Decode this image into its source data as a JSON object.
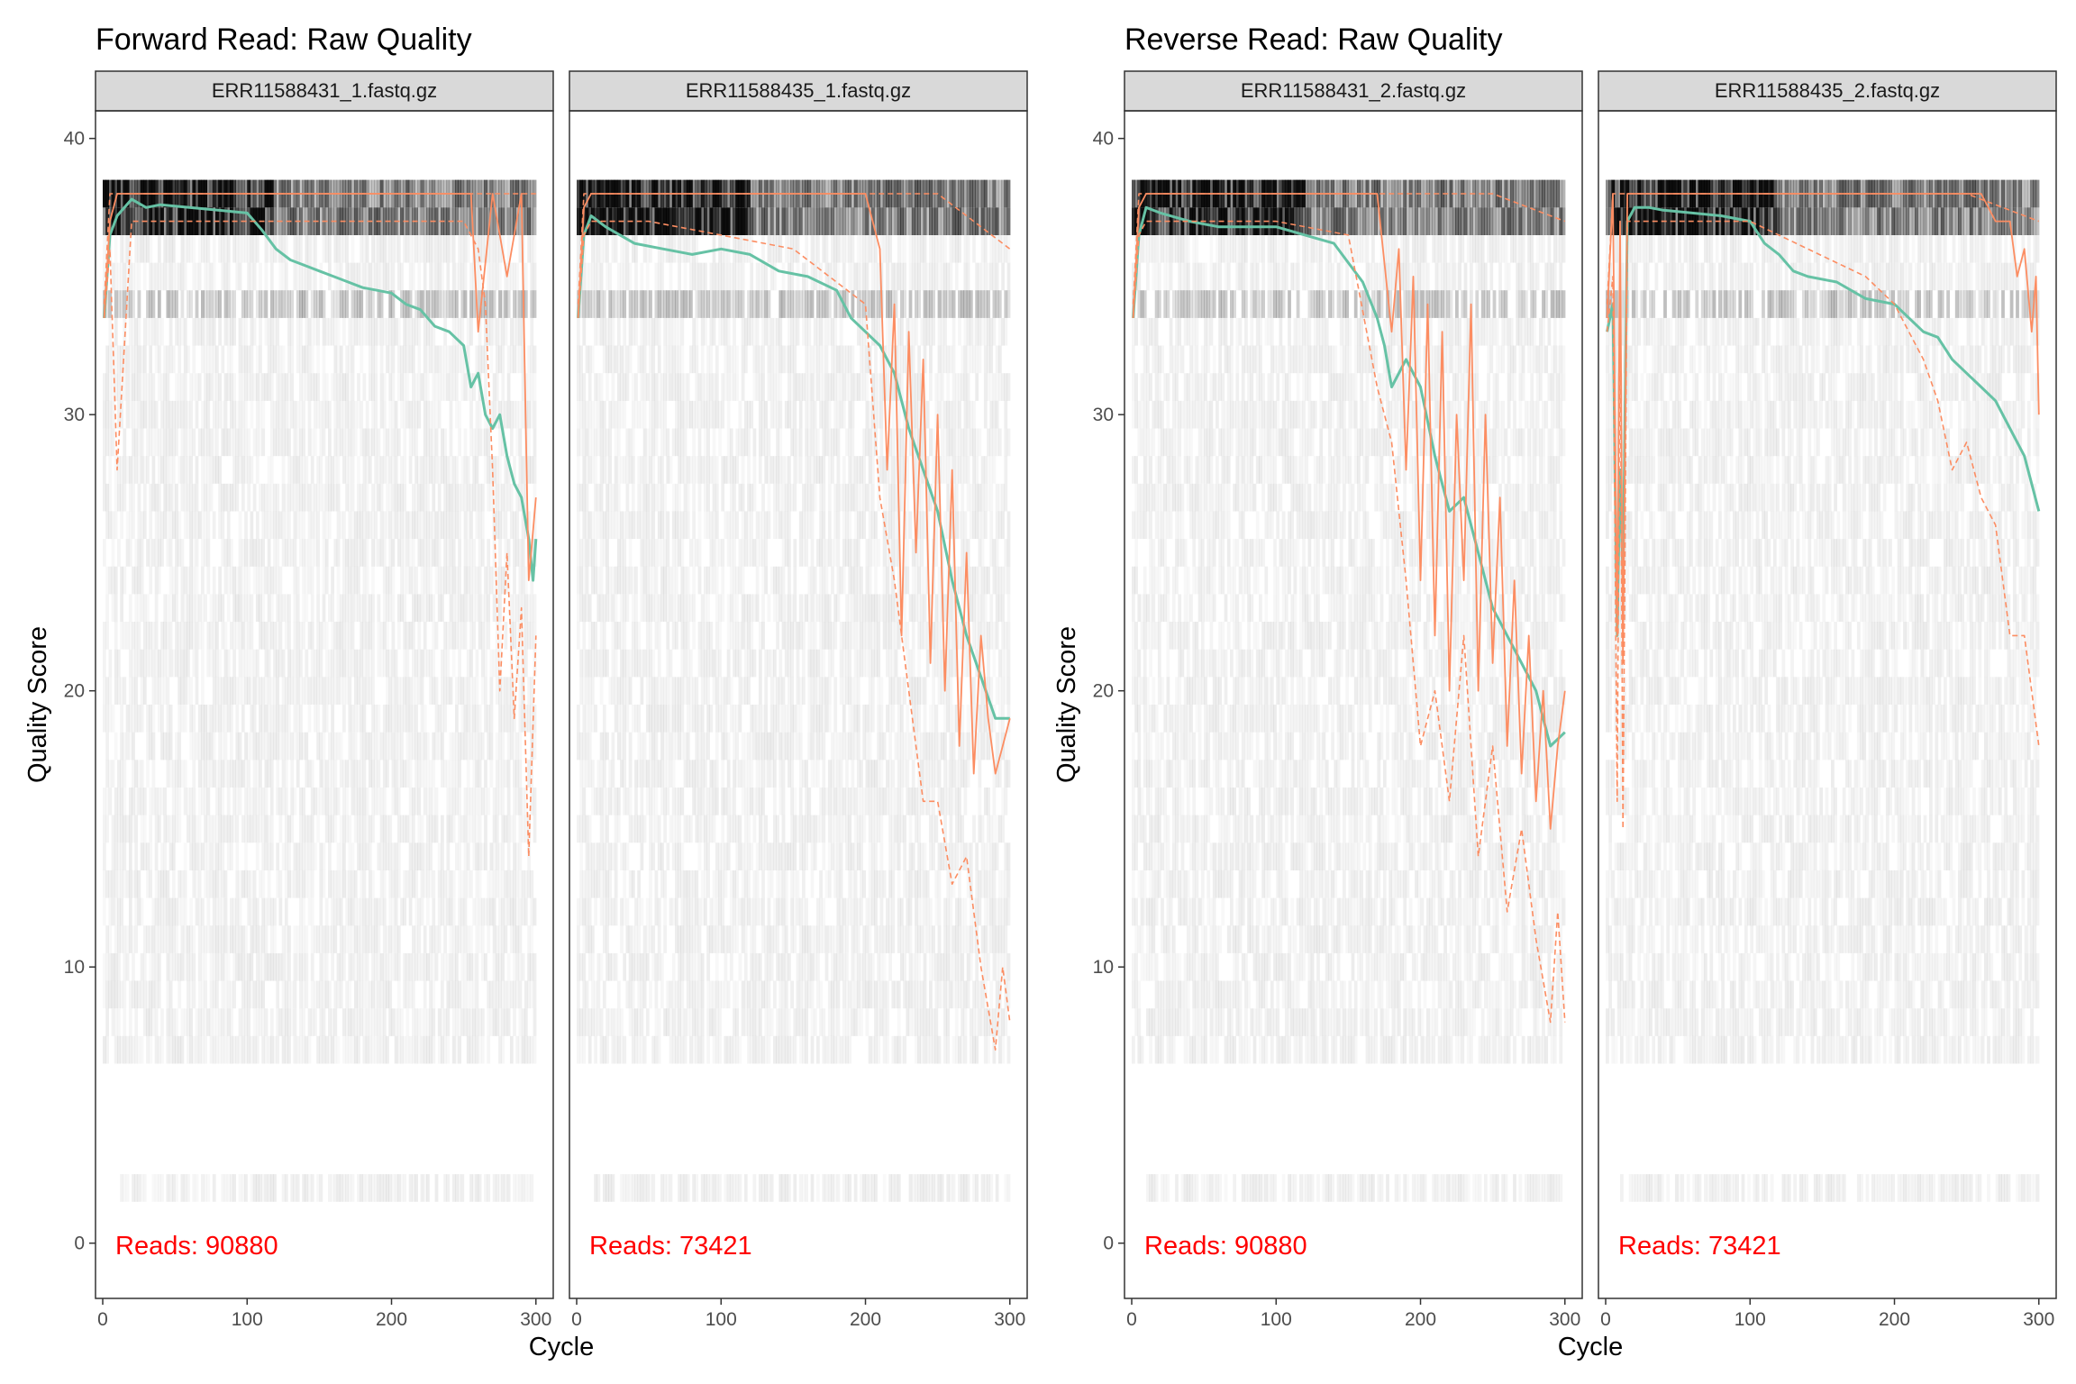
{
  "chart_data": [
    {
      "type": "line",
      "title": "Forward Read: Raw Quality",
      "xlabel": "Cycle",
      "ylabel": "Quality Score",
      "xlim": [
        -5,
        312
      ],
      "ylim": [
        -2,
        41
      ],
      "xticks": [
        0,
        100,
        200,
        300
      ],
      "yticks": [
        0,
        10,
        20,
        30,
        40
      ],
      "grid": false,
      "colors": {
        "mean": "#66c2a5",
        "quantile": "#fc8d62",
        "heat": "#000000"
      },
      "panels": [
        {
          "strip": "ERR11588431_1.fastq.gz",
          "reads_label": "Reads:  90880",
          "series": [
            {
              "role": "mean",
              "x": [
                1,
                5,
                10,
                15,
                20,
                30,
                40,
                60,
                80,
                100,
                110,
                120,
                130,
                140,
                150,
                160,
                170,
                180,
                190,
                200,
                210,
                220,
                230,
                240,
                250,
                255,
                260,
                265,
                270,
                275,
                280,
                285,
                290,
                295,
                298,
                300
              ],
              "values": [
                33.5,
                36.5,
                37.2,
                37.5,
                37.8,
                37.5,
                37.6,
                37.5,
                37.4,
                37.3,
                36.7,
                36.0,
                35.6,
                35.4,
                35.2,
                35.0,
                34.8,
                34.6,
                34.5,
                34.4,
                34.0,
                33.8,
                33.2,
                33.0,
                32.5,
                31.0,
                31.5,
                30.0,
                29.5,
                30.0,
                28.5,
                27.5,
                27.0,
                25.5,
                24.0,
                25.5
              ]
            },
            {
              "role": "median",
              "x": [
                1,
                5,
                10,
                30,
                60,
                100,
                150,
                200,
                240,
                255,
                260,
                270,
                280,
                290,
                295,
                300
              ],
              "values": [
                33.5,
                37.0,
                38.0,
                38.0,
                38.0,
                38.0,
                38.0,
                38.0,
                38.0,
                38.0,
                33.0,
                38.0,
                35.0,
                38.0,
                24.0,
                27.0
              ]
            },
            {
              "role": "q25",
              "x": [
                1,
                5,
                10,
                20,
                50,
                100,
                150,
                200,
                240,
                250,
                260,
                265,
                270,
                275,
                280,
                285,
                290,
                295,
                300
              ],
              "values": [
                33.5,
                36.0,
                28.0,
                37.0,
                37.0,
                37.0,
                37.0,
                37.0,
                37.0,
                37.0,
                36.0,
                34.0,
                28.0,
                20.0,
                25.0,
                19.0,
                23.0,
                14.0,
                22.0
              ]
            },
            {
              "role": "q75",
              "x": [
                1,
                5,
                10,
                50,
                100,
                150,
                200,
                250,
                300
              ],
              "values": [
                34.0,
                38.0,
                38.0,
                38.0,
                38.0,
                38.0,
                38.0,
                38.0,
                38.0
              ]
            }
          ]
        },
        {
          "strip": "ERR11588435_1.fastq.gz",
          "reads_label": "Reads:  73421",
          "series": [
            {
              "role": "mean",
              "x": [
                1,
                5,
                10,
                20,
                40,
                60,
                80,
                100,
                120,
                140,
                160,
                180,
                190,
                200,
                210,
                220,
                230,
                240,
                250,
                260,
                270,
                280,
                290,
                300
              ],
              "values": [
                33.5,
                36.5,
                37.2,
                36.8,
                36.2,
                36.0,
                35.8,
                36.0,
                35.8,
                35.2,
                35.0,
                34.5,
                33.5,
                33.0,
                32.5,
                31.5,
                29.5,
                28.0,
                26.5,
                24.0,
                22.0,
                20.5,
                19.0,
                19.0
              ]
            },
            {
              "role": "median",
              "x": [
                1,
                5,
                10,
                50,
                100,
                150,
                200,
                210,
                215,
                220,
                225,
                230,
                235,
                240,
                245,
                250,
                255,
                260,
                265,
                270,
                275,
                280,
                285,
                290,
                295,
                300
              ],
              "values": [
                33.5,
                37.5,
                38.0,
                38.0,
                38.0,
                38.0,
                38.0,
                36.0,
                28.0,
                34.0,
                22.0,
                33.0,
                25.0,
                32.0,
                21.0,
                30.0,
                20.0,
                28.0,
                18.0,
                25.0,
                17.0,
                22.0,
                19.0,
                17.0,
                18.0,
                19.0
              ]
            },
            {
              "role": "q25",
              "x": [
                1,
                5,
                10,
                50,
                100,
                150,
                200,
                210,
                220,
                230,
                240,
                250,
                260,
                270,
                280,
                290,
                295,
                300
              ],
              "values": [
                33.5,
                36.5,
                37.0,
                37.0,
                36.5,
                36.0,
                34.0,
                27.0,
                24.0,
                20.0,
                16.0,
                16.0,
                13.0,
                14.0,
                10.0,
                7.0,
                10.0,
                8.0
              ]
            },
            {
              "role": "q75",
              "x": [
                1,
                5,
                10,
                50,
                100,
                150,
                200,
                250,
                300
              ],
              "values": [
                34.0,
                38.0,
                38.0,
                38.0,
                38.0,
                38.0,
                38.0,
                38.0,
                36.0
              ]
            }
          ]
        }
      ]
    },
    {
      "type": "line",
      "title": "Reverse Read: Raw Quality",
      "xlabel": "Cycle",
      "ylabel": "Quality Score",
      "xlim": [
        -5,
        312
      ],
      "ylim": [
        -2,
        41
      ],
      "xticks": [
        0,
        100,
        200,
        300
      ],
      "yticks": [
        0,
        10,
        20,
        30,
        40
      ],
      "grid": false,
      "colors": {
        "mean": "#66c2a5",
        "quantile": "#fc8d62",
        "heat": "#000000"
      },
      "panels": [
        {
          "strip": "ERR11588431_2.fastq.gz",
          "reads_label": "Reads:  90880",
          "series": [
            {
              "role": "mean",
              "x": [
                1,
                5,
                10,
                20,
                40,
                60,
                80,
                100,
                120,
                140,
                150,
                160,
                170,
                175,
                180,
                190,
                200,
                210,
                220,
                230,
                240,
                250,
                260,
                270,
                280,
                290,
                300
              ],
              "values": [
                33.5,
                36.5,
                37.5,
                37.3,
                37.0,
                36.8,
                36.8,
                36.8,
                36.5,
                36.2,
                35.5,
                34.8,
                33.5,
                32.5,
                31.0,
                32.0,
                31.0,
                28.5,
                26.5,
                27.0,
                25.0,
                23.0,
                22.0,
                21.0,
                20.0,
                18.0,
                18.5
              ]
            },
            {
              "role": "median",
              "x": [
                1,
                5,
                10,
                50,
                100,
                150,
                170,
                180,
                185,
                190,
                195,
                200,
                205,
                210,
                215,
                220,
                225,
                230,
                235,
                240,
                245,
                250,
                255,
                260,
                265,
                270,
                275,
                280,
                285,
                290,
                295,
                300
              ],
              "values": [
                33.5,
                37.5,
                38.0,
                38.0,
                38.0,
                38.0,
                38.0,
                33.0,
                36.0,
                28.0,
                35.0,
                24.0,
                34.0,
                22.0,
                33.0,
                20.0,
                30.0,
                24.0,
                34.0,
                20.0,
                30.0,
                21.0,
                27.0,
                18.0,
                24.0,
                17.0,
                22.0,
                16.0,
                20.0,
                15.0,
                18.0,
                20.0
              ]
            },
            {
              "role": "q25",
              "x": [
                1,
                5,
                10,
                50,
                100,
                150,
                170,
                180,
                190,
                200,
                210,
                220,
                230,
                240,
                250,
                260,
                270,
                280,
                290,
                295,
                300
              ],
              "values": [
                33.5,
                36.5,
                37.0,
                37.0,
                37.0,
                36.5,
                31.0,
                29.0,
                24.0,
                18.0,
                20.0,
                16.0,
                22.0,
                14.0,
                18.0,
                12.0,
                15.0,
                11.0,
                8.0,
                12.0,
                8.0
              ]
            },
            {
              "role": "q75",
              "x": [
                1,
                5,
                10,
                50,
                100,
                150,
                200,
                250,
                300
              ],
              "values": [
                34.0,
                38.0,
                38.0,
                38.0,
                38.0,
                38.0,
                38.0,
                38.0,
                37.0
              ]
            }
          ]
        },
        {
          "strip": "ERR11588435_2.fastq.gz",
          "reads_label": "Reads:  73421",
          "series": [
            {
              "role": "mean",
              "x": [
                1,
                5,
                8,
                10,
                12,
                15,
                20,
                30,
                40,
                60,
                80,
                100,
                110,
                120,
                130,
                140,
                160,
                180,
                200,
                220,
                230,
                240,
                250,
                260,
                270,
                280,
                290,
                300
              ],
              "values": [
                33.0,
                34.0,
                22.0,
                28.0,
                24.0,
                37.0,
                37.5,
                37.5,
                37.4,
                37.3,
                37.2,
                37.0,
                36.2,
                35.8,
                35.2,
                35.0,
                34.8,
                34.2,
                34.0,
                33.0,
                32.8,
                32.0,
                31.5,
                31.0,
                30.5,
                29.5,
                28.5,
                26.5
              ]
            },
            {
              "role": "median",
              "x": [
                1,
                5,
                8,
                10,
                12,
                15,
                20,
                50,
                100,
                150,
                200,
                210,
                220,
                230,
                240,
                250,
                260,
                270,
                280,
                285,
                290,
                295,
                298,
                300
              ],
              "values": [
                33.5,
                38.0,
                22.0,
                37.0,
                21.0,
                38.0,
                38.0,
                38.0,
                38.0,
                38.0,
                38.0,
                38.0,
                38.0,
                38.0,
                38.0,
                38.0,
                38.0,
                37.0,
                37.0,
                35.0,
                36.0,
                33.0,
                35.0,
                30.0
              ]
            },
            {
              "role": "q25",
              "x": [
                1,
                5,
                8,
                10,
                12,
                15,
                20,
                50,
                100,
                140,
                160,
                180,
                200,
                210,
                220,
                230,
                240,
                250,
                260,
                270,
                280,
                290,
                300
              ],
              "values": [
                33.0,
                35.0,
                16.0,
                34.0,
                15.0,
                37.0,
                37.0,
                37.0,
                37.0,
                36.0,
                35.5,
                35.0,
                34.0,
                33.0,
                32.0,
                30.5,
                28.0,
                29.0,
                27.0,
                26.0,
                22.0,
                22.0,
                18.0
              ]
            },
            {
              "role": "q75",
              "x": [
                1,
                5,
                10,
                50,
                100,
                150,
                200,
                250,
                300
              ],
              "values": [
                34.0,
                38.0,
                38.0,
                38.0,
                38.0,
                38.0,
                38.0,
                38.0,
                37.0
              ]
            }
          ]
        }
      ]
    }
  ]
}
